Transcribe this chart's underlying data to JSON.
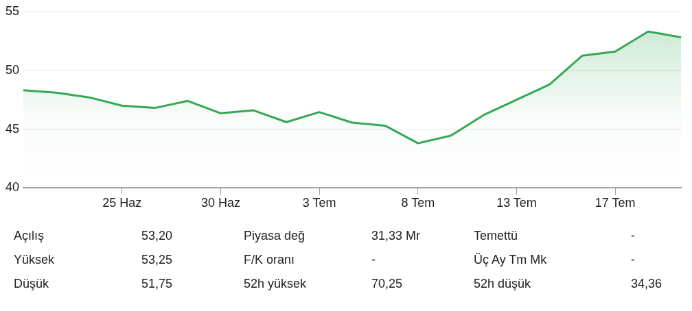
{
  "chart_data": [
    {
      "type": "area",
      "categories": [
        null,
        null,
        null,
        "25 Haz",
        null,
        null,
        "30 Haz",
        null,
        null,
        "3 Tem",
        null,
        null,
        "8 Tem",
        null,
        null,
        "13 Tem",
        null,
        null,
        "17 Tem",
        null,
        null
      ],
      "series": [
        {
          "color": "#34a853",
          "values": [
            48.3,
            48.1,
            47.7,
            47.0,
            46.8,
            47.4,
            46.35,
            46.6,
            45.6,
            46.45,
            45.55,
            45.3,
            43.8,
            44.45,
            46.2,
            47.5,
            48.8,
            51.25,
            51.6,
            53.3,
            52.8
          ]
        }
      ],
      "ylim": [
        40,
        55
      ],
      "yticks": [
        40,
        45,
        50,
        55
      ],
      "grid": "y",
      "legend": false
    },
    {
      "type": "other",
      "categories": [
        "Açılış",
        "Piyasa değ",
        "Temettü",
        "Yüksek",
        "F/K oranı",
        "Üç Ay Tm Mk",
        "Düşük",
        "52h yüksek",
        "52h düşük"
      ],
      "value_labels": [
        "53,20",
        "31,33 Mr",
        "-",
        "53,25",
        "-",
        "-",
        "51,75",
        "70,25",
        "34,36"
      ]
    }
  ]
}
